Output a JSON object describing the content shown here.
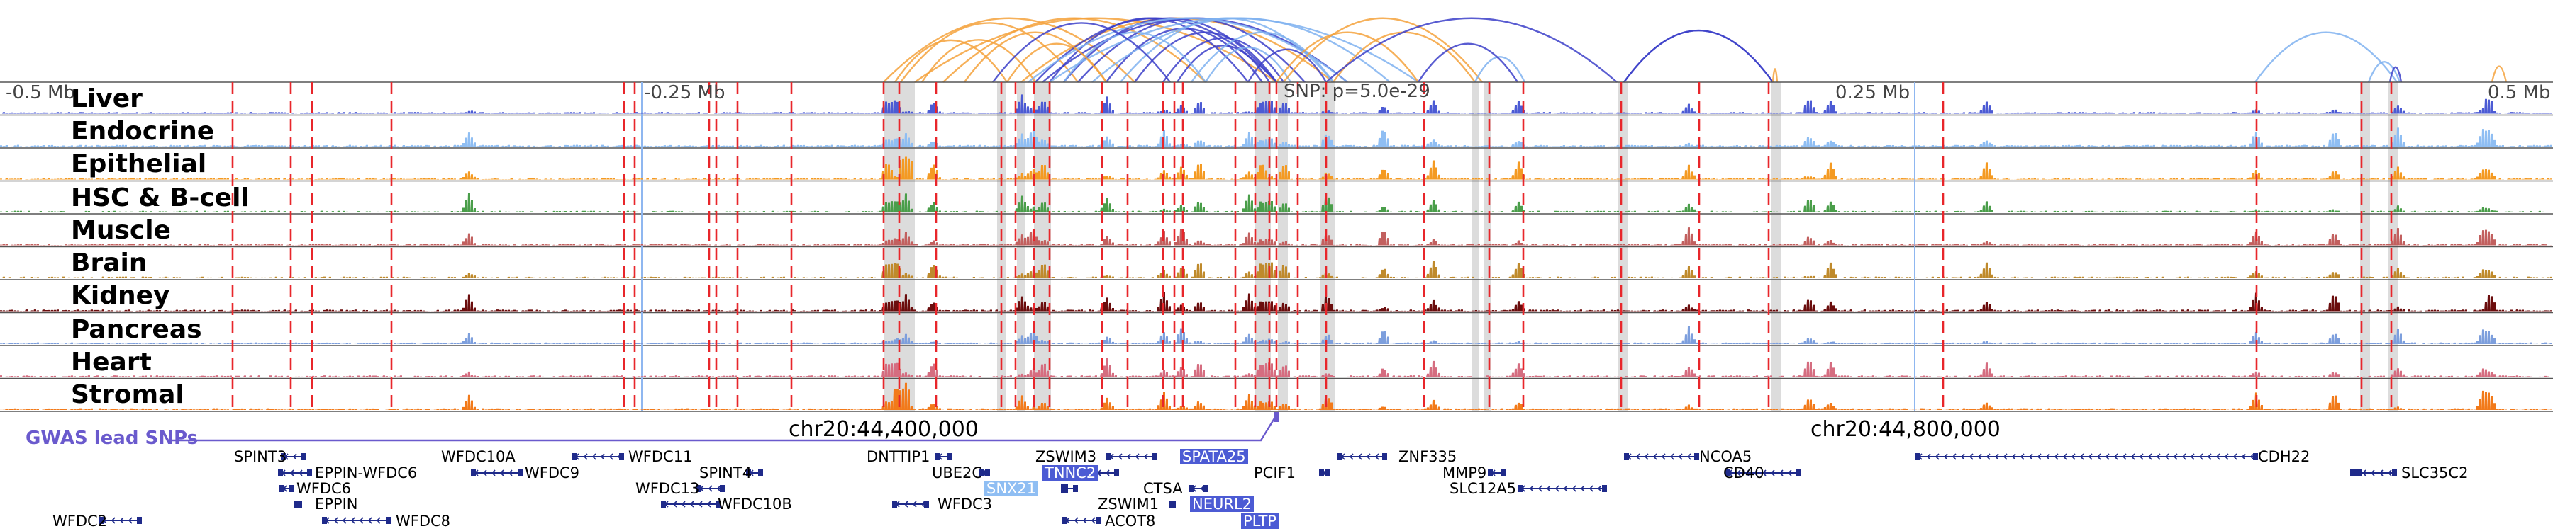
{
  "axis": {
    "ticks": [
      "-0.5 Mb",
      "-0.25 Mb",
      "0.25 Mb",
      "0.5 Mb"
    ],
    "snp_annotation": "SNP: p=5.0e-29",
    "coord_left": "chr20:44,400,000",
    "coord_right": "chr20:44,800,000"
  },
  "colors": {
    "red_line": "#e8262b",
    "grey_band": "#dcdcdc",
    "loop_dark": "#3c3fc9",
    "loop_light": "#7fb2f0",
    "loop_orange": "#f5a23c",
    "gene": "#1f2a8a",
    "gwas": "#6a5acd"
  },
  "tracks": [
    {
      "name": "Liver",
      "color": "#4c5bd4"
    },
    {
      "name": "Endocrine",
      "color": "#8fbef3"
    },
    {
      "name": "Epithelial",
      "color": "#f49a22"
    },
    {
      "name": "HSC & B-cell",
      "color": "#4a9e4a"
    },
    {
      "name": "Muscle",
      "color": "#c2605f"
    },
    {
      "name": "Brain",
      "color": "#bf8a2c"
    },
    {
      "name": "Kidney",
      "color": "#6b0d0d"
    },
    {
      "name": "Pancreas",
      "color": "#7d9fdd"
    },
    {
      "name": "Heart",
      "color": "#d56d80"
    },
    {
      "name": "Stromal",
      "color": "#f27a1a"
    }
  ],
  "gwas": {
    "label": "GWAS lead SNPs"
  },
  "genes": [
    {
      "name": "SPINT3",
      "highlight": false
    },
    {
      "name": "EPPIN-WFDC6",
      "highlight": false
    },
    {
      "name": "WFDC6",
      "highlight": false
    },
    {
      "name": "EPPIN",
      "highlight": false
    },
    {
      "name": "WFDC2",
      "highlight": false
    },
    {
      "name": "WFDC8",
      "highlight": false
    },
    {
      "name": "WFDC10A",
      "highlight": false
    },
    {
      "name": "WFDC9",
      "highlight": false
    },
    {
      "name": "WFDC11",
      "highlight": false
    },
    {
      "name": "WFDC13",
      "highlight": false
    },
    {
      "name": "SPINT4",
      "highlight": false
    },
    {
      "name": "WFDC10B",
      "highlight": false
    },
    {
      "name": "DNTTIP1",
      "highlight": false
    },
    {
      "name": "UBE2C",
      "highlight": false
    },
    {
      "name": "WFDC3",
      "highlight": false
    },
    {
      "name": "ZSWIM3",
      "highlight": false
    },
    {
      "name": "TNNC2",
      "highlight": true,
      "color": "#4c5bd4"
    },
    {
      "name": "SNX21",
      "highlight": true,
      "color": "#8fbef3"
    },
    {
      "name": "ZSWIM1",
      "highlight": false
    },
    {
      "name": "ACOT8",
      "highlight": false
    },
    {
      "name": "SPATA25",
      "highlight": true,
      "color": "#4c5bd4"
    },
    {
      "name": "CTSA",
      "highlight": false
    },
    {
      "name": "NEURL2",
      "highlight": true,
      "color": "#4c5bd4"
    },
    {
      "name": "PLTP",
      "highlight": true,
      "color": "#4c5bd4"
    },
    {
      "name": "PCIF1",
      "highlight": false
    },
    {
      "name": "ZNF335",
      "highlight": false
    },
    {
      "name": "MMP9",
      "highlight": false
    },
    {
      "name": "SLC12A5",
      "highlight": false
    },
    {
      "name": "NCOA5",
      "highlight": false
    },
    {
      "name": "CD40",
      "highlight": false
    },
    {
      "name": "CDH22",
      "highlight": false
    },
    {
      "name": "SLC35C2",
      "highlight": false
    }
  ]
}
